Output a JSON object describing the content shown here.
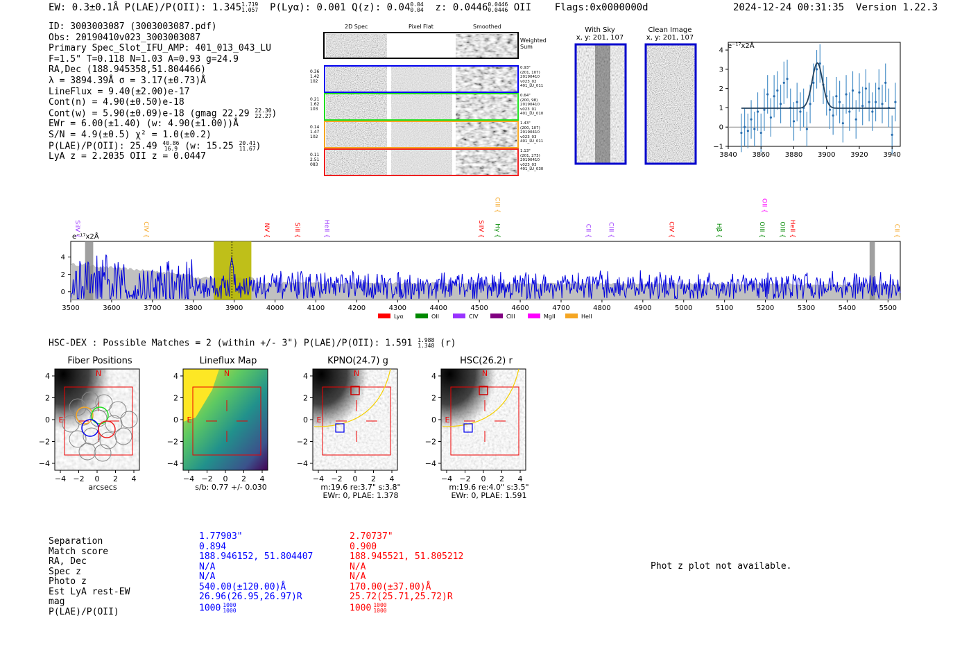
{
  "header": {
    "ew_prefix": "EW: 0.3±0.1Å  P(LAE)/P(OII): 1.345",
    "plae_hi": "1.719",
    "plae_lo": "1.057",
    "plya": "P(Lyα): 0.001  Q(z): 0.04",
    "qz_hi": "0.04",
    "qz_lo": "0.04",
    "z_label": "z: 0.0446",
    "z_hi": "0.0446",
    "z_lo": "0.0446",
    "z_line": "OII",
    "flags": "Flags:0x0000000d",
    "timestamp": "2024-12-24 00:31:35",
    "version": "Version 1.22.3"
  },
  "info": {
    "line1": "ID: 3003003087 (3003003087.pdf)",
    "line2": "Obs: 20190410v023_3003003087",
    "line3": "Primary Spec_Slot_IFU_AMP: 401_013_043_LU",
    "line4": "F=1.5\"  T=0.118  N=1.03  A=0.93  g=24.9",
    "line5": "RA,Dec (188.945358,51.804466)",
    "line6": "λ = 3894.39Å  σ = 3.17(±0.73)Å",
    "line7": "LineFlux = 9.40(±2.00)e-17",
    "line8": "Cont(n) = 4.90(±0.50)e-18",
    "line9": "Cont(w) = 5.90(±0.09)e-18 (gmag 22.29",
    "line9_hi": "22.30",
    "line9_lo": "22.27",
    "line9_end": ")",
    "line10": "EWr = 6.00(±1.40) (w: 4.90(±1.00))Å",
    "line11": "S/N = 4.9(±0.5)  χ² = 1.0(±0.2)",
    "line12": "P(LAE)/P(OII): 25.49",
    "line12_hi": "40.86",
    "line12_lo": "16.9",
    "line12_mid": " (w: 15.25",
    "line12_hi2": "20.41",
    "line12_lo2": "11.67",
    "line12_end": ")",
    "line13": "LyA z = 2.2035   OII z = 0.0447"
  },
  "spec2d": {
    "col1": "2D Spec",
    "col2": "Pixel Flat",
    "col3": "Smoothed",
    "weighted": "Weighted Sum",
    "fibers": [
      {
        "l1": "0.36",
        "l2": "1.42",
        "l3": "102",
        "s1": "0.93\"",
        "s2": "(201, 107)",
        "s3": "20190410",
        "s4": "v023_02",
        "s5": "401_LU_011",
        "color": "#0000ee"
      },
      {
        "l1": "0.21",
        "l2": "1.62",
        "l3": "103",
        "s1": "0.64\"",
        "s2": "(200, 98)",
        "s3": "20190410",
        "s4": "v023_01",
        "s5": "401_LU_010",
        "color": "#22dd22"
      },
      {
        "l1": "0.14",
        "l2": "1.47",
        "l3": "102",
        "s1": "1.43\"",
        "s2": "(200, 107)",
        "s3": "20190410",
        "s4": "v023_03",
        "s5": "401_LU_011",
        "color": "#f5a623"
      },
      {
        "l1": "0.11",
        "l2": "2.51",
        "l3": "083",
        "s1": "1.13\"",
        "s2": "(201, 273)",
        "s3": "20190410",
        "s4": "v023_03",
        "s5": "401_LU_030",
        "color": "#ee2222"
      }
    ]
  },
  "sky": {
    "with_title": "With Sky",
    "with_sub": "x, y: 201, 107",
    "clean_title": "Clean Image",
    "clean_sub": "x, y: 201, 107"
  },
  "line_fit": {
    "unit_label": "e⁻¹⁷x2Å",
    "chart_data": {
      "type": "scatter",
      "xlim": [
        3840,
        3945
      ],
      "ylim": [
        -1,
        4.4
      ],
      "xticks": [
        "3840",
        "3860",
        "3880",
        "3900",
        "3920",
        "3940"
      ],
      "yticks": [
        "-1",
        "0",
        "1",
        "2",
        "3",
        "4"
      ],
      "x": [
        3848,
        3850,
        3852,
        3854,
        3856,
        3858,
        3860,
        3862,
        3864,
        3866,
        3868,
        3870,
        3872,
        3874,
        3876,
        3878,
        3880,
        3882,
        3884,
        3886,
        3888,
        3890,
        3892,
        3894,
        3896,
        3898,
        3900,
        3902,
        3904,
        3906,
        3908,
        3910,
        3912,
        3914,
        3916,
        3918,
        3920,
        3922,
        3924,
        3926,
        3928,
        3930,
        3932,
        3934,
        3936,
        3938,
        3940,
        3942
      ],
      "y": [
        -0.3,
        0.0,
        -0.2,
        0.4,
        -0.1,
        0.8,
        -0.3,
        0.9,
        1.7,
        0.5,
        1.6,
        1.9,
        1.2,
        2.3,
        2.5,
        1.0,
        0.3,
        1.3,
        0.8,
        1.0,
        -0.1,
        1.2,
        2.3,
        3.0,
        3.3,
        2.2,
        1.6,
        0.9,
        0.6,
        1.6,
        1.3,
        0.2,
        1.7,
        0.8,
        1.9,
        0.4,
        1.8,
        1.1,
        2.0,
        1.3,
        0.8,
        1.3,
        2.0,
        1.2,
        2.3,
        1.0,
        -0.4,
        1.3
      ],
      "err": [
        1.0,
        1.0,
        0.9,
        1.0,
        0.9,
        1.0,
        1.0,
        1.1,
        1.0,
        1.0,
        1.1,
        1.0,
        1.0,
        1.1,
        1.0,
        1.0,
        1.0,
        1.0,
        1.0,
        1.0,
        0.9,
        1.0,
        1.0,
        1.0,
        1.0,
        1.0,
        1.0,
        1.0,
        1.0,
        1.0,
        1.1,
        1.0,
        1.0,
        1.0,
        1.0,
        1.0,
        1.0,
        1.0,
        1.0,
        1.0,
        1.0,
        1.0,
        1.0,
        1.0,
        1.0,
        1.0,
        1.0,
        1.0
      ],
      "fit": {
        "continuum": 0.98,
        "amplitude": 2.35,
        "center": 3894.39,
        "sigma": 3.17
      }
    }
  },
  "full_spec": {
    "unit_label": "e⁻¹⁷x2Å",
    "chart_data": {
      "type": "line",
      "xlim": [
        3500,
        5530
      ],
      "ylim": [
        -0.9,
        5.8
      ],
      "xticks": [
        "3500",
        "3600",
        "3700",
        "3800",
        "3900",
        "4000",
        "4100",
        "4200",
        "4300",
        "4400",
        "4500",
        "4600",
        "4700",
        "4800",
        "4900",
        "5000",
        "5100",
        "5200",
        "5300",
        "5400",
        "5500"
      ],
      "yticks": [
        "0",
        "2",
        "4"
      ],
      "highlight": [
        3850,
        3942
      ],
      "line_center": 3894.4,
      "lines": [
        {
          "name": "SiIV",
          "x": 3512,
          "color": "#9933ff",
          "row": 1
        },
        {
          "name": "CIV",
          "x": 3680,
          "color": "#f5a623",
          "row": 1
        },
        {
          "name": "NV",
          "x": 3975,
          "color": "#ff0000",
          "row": 1
        },
        {
          "name": "SiII",
          "x": 4050,
          "color": "#ff0000",
          "row": 1
        },
        {
          "name": "HeII",
          "x": 4122,
          "color": "#9933ff",
          "row": 1
        },
        {
          "name": "SiIV",
          "x": 4500,
          "color": "#ff0000",
          "row": 1
        },
        {
          "name": "Hγ",
          "x": 4540,
          "color": "#008800",
          "row": 1
        },
        {
          "name": "CIII",
          "x": 4540,
          "color": "#f5a623",
          "row": 0
        },
        {
          "name": "CII",
          "x": 4762,
          "color": "#9933ff",
          "row": 1
        },
        {
          "name": "CIII",
          "x": 4818,
          "color": "#9933ff",
          "row": 1
        },
        {
          "name": "CIV",
          "x": 4966,
          "color": "#ff0000",
          "row": 1
        },
        {
          "name": "Hβ",
          "x": 5082,
          "color": "#008800",
          "row": 1
        },
        {
          "name": "OIII",
          "x": 5187,
          "color": "#008800",
          "row": 1
        },
        {
          "name": "OII",
          "x": 5193,
          "color": "#ff00ff",
          "row": 0
        },
        {
          "name": "OIII",
          "x": 5237,
          "color": "#008800",
          "row": 1
        },
        {
          "name": "HeII",
          "x": 5262,
          "color": "#ff0000",
          "row": 1
        },
        {
          "name": "CII",
          "x": 5517,
          "color": "#f5a623",
          "row": 1
        }
      ],
      "legend": [
        {
          "name": "Lyα",
          "color": "#ff0000"
        },
        {
          "name": "OII",
          "color": "#008800"
        },
        {
          "name": "CIV",
          "color": "#9933ff"
        },
        {
          "name": "CIII",
          "color": "#800080"
        },
        {
          "name": "MgII",
          "color": "#ff00ff"
        },
        {
          "name": "HeII",
          "color": "#f5a623"
        }
      ]
    }
  },
  "hsc": {
    "title": "HSC-DEX : Possible Matches = 2 (within +/- 3\")  P(LAE)/P(OII): 1.591",
    "hi": "1.988",
    "lo": "1.348",
    "end": " (r)"
  },
  "cutouts": {
    "ticks": [
      "4",
      "2",
      "0",
      "−2",
      "−4"
    ],
    "xticks": [
      "−4",
      "−2",
      "0",
      "2",
      "4"
    ],
    "north": "N",
    "east": "E",
    "panels": [
      {
        "title": "Fiber Positions",
        "cap1": "arcsecs",
        "cap2": ""
      },
      {
        "title": "Lineflux Map",
        "cap1": "s/b: 0.77 +/- 0.030",
        "cap2": ""
      },
      {
        "title": "KPNO(24.7) g",
        "cap1": "m:19.6  re:3.7\"  s:3.8\"",
        "cap2": "EWr: 0, PLAE: 1.378"
      },
      {
        "title": "HSC(26.2) r",
        "cap1": "m:19.6  re:4.0\"  s:3.5\"",
        "cap2": "EWr: 0, PLAE: 1.591"
      }
    ]
  },
  "table": {
    "labels": [
      "Separation",
      "Match score",
      "RA, Dec",
      "Spec z",
      "Photo z",
      "Est LyA rest-EW",
      "mag",
      "P(LAE)/P(OII)"
    ],
    "m1": [
      "1.77903\"",
      "0.894",
      "188.946152, 51.804407",
      "N/A",
      "N/A",
      "540.00(±120.00)Å",
      "26.96(26.95,26.97)R",
      "1000"
    ],
    "m1_hi": "1000",
    "m1_lo": "1000",
    "m2": [
      "2.70737\"",
      "0.900",
      "188.945521, 51.805212",
      "N/A",
      "N/A",
      "170.00(±37.00)Å",
      "25.72(25.71,25.72)R",
      "1000"
    ],
    "m2_hi": "1000",
    "m2_lo": "1000"
  },
  "photz": "Phot z plot not available."
}
